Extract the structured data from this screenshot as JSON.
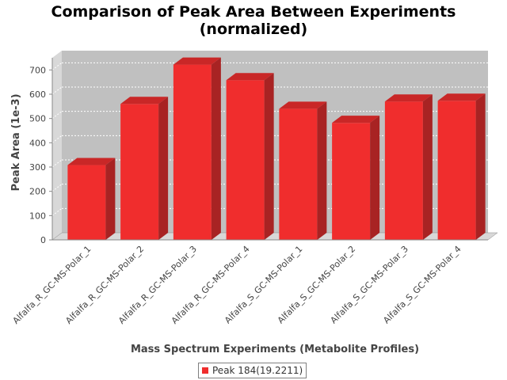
{
  "chart_data": {
    "type": "bar",
    "title": [
      "Comparison of Peak Area Between Experiments",
      "(normalized)"
    ],
    "xlabel": "Mass Spectrum Experiments (Metabolite Profiles)",
    "ylabel": "Peak Area (1e-3)",
    "categories": [
      "Alfalfa_R_GC-MS-Polar_1",
      "Alfalfa_R_GC-MS-Polar_2",
      "Alfalfa_R_GC-MS-Polar_3",
      "Alfalfa_R_GC-MS-Polar_4",
      "Alfalfa_S_GC-MS-Polar_1",
      "Alfalfa_S_GC-MS-Polar_2",
      "Alfalfa_S_GC-MS-Polar_3",
      "Alfalfa_S_GC-MS-Polar_4"
    ],
    "series": [
      {
        "name": "Peak 184(19.2211)",
        "color": "#f02d2d",
        "values": [
          308,
          560,
          722,
          658,
          540,
          482,
          570,
          573
        ]
      }
    ],
    "ylim": [
      0,
      750
    ],
    "yticks": [
      0,
      100,
      200,
      300,
      400,
      500,
      600,
      700
    ],
    "grid": true,
    "legend": "bottom"
  }
}
